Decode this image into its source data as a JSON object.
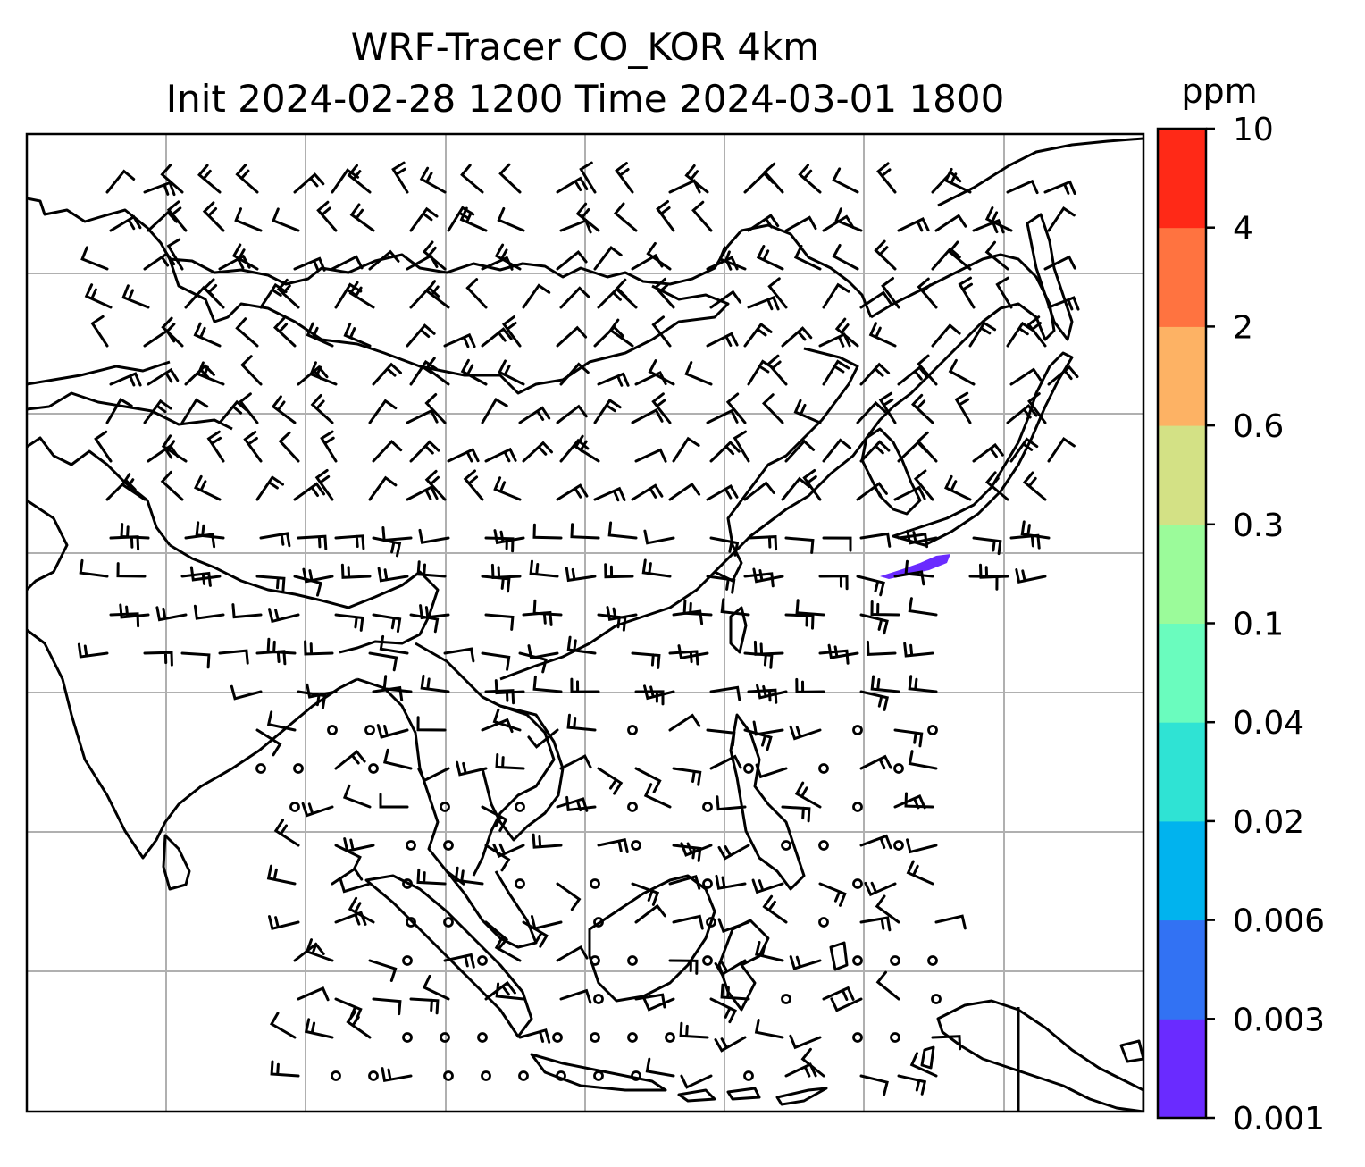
{
  "title": {
    "line1": "WRF-Tracer CO_KOR 4km",
    "line2": "Init 2024-02-28 1200 Time 2024-03-01 1800"
  },
  "colorbar": {
    "unit": "ppm",
    "levels": [
      "0.001",
      "0.003",
      "0.006",
      "0.02",
      "0.04",
      "0.1",
      "0.3",
      "0.6",
      "2",
      "4",
      "10"
    ],
    "colors": [
      "#6a2bff",
      "#3272f3",
      "#01b3ee",
      "#2fe3d4",
      "#6afcbe",
      "#9bfb9a",
      "#d3e185",
      "#fdb264",
      "#ff7340",
      "#ff2917"
    ]
  },
  "map": {
    "gridlines": "on",
    "coastline_color": "#000000",
    "tracer_plume_color": "#6a2bff",
    "barb_color": "#000000",
    "frame": "on"
  }
}
